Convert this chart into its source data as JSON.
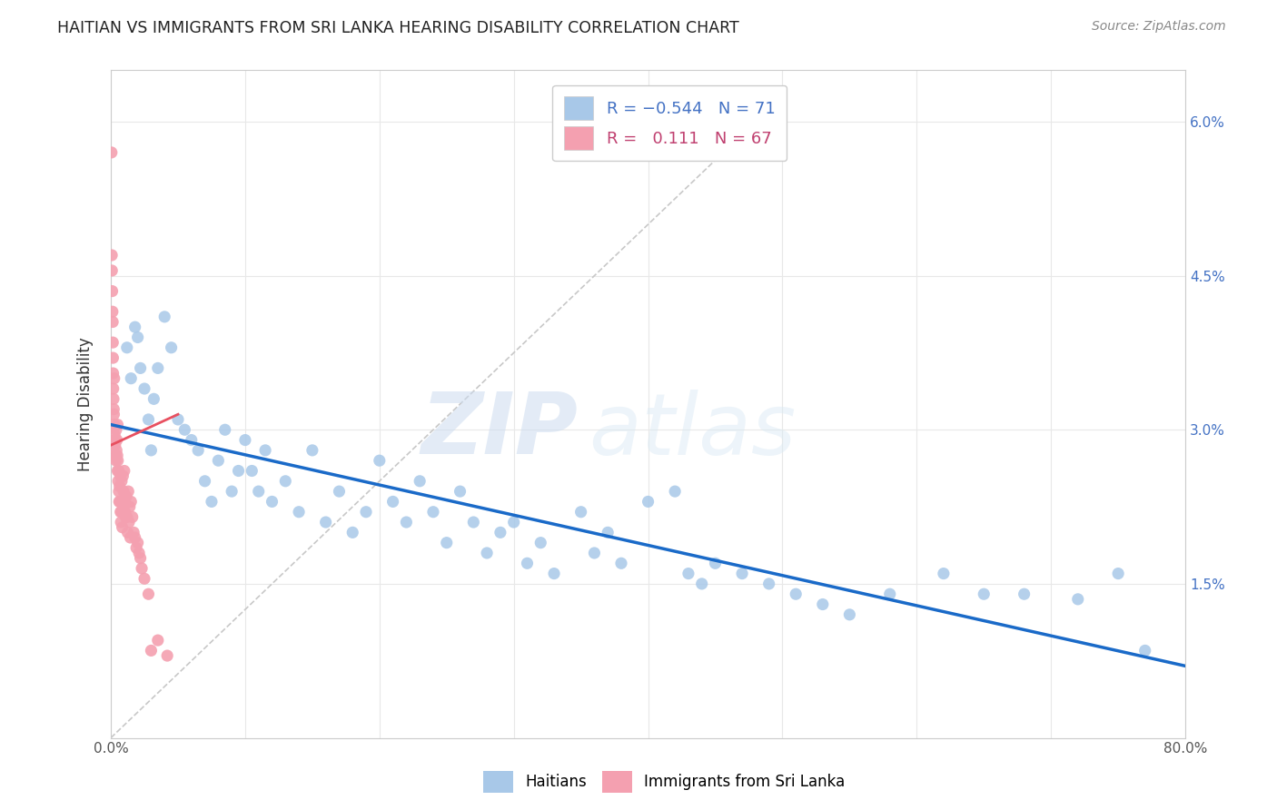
{
  "title": "HAITIAN VS IMMIGRANTS FROM SRI LANKA HEARING DISABILITY CORRELATION CHART",
  "source": "Source: ZipAtlas.com",
  "ylabel": "Hearing Disability",
  "blue_color": "#a8c8e8",
  "pink_color": "#f4a0b0",
  "blue_line_color": "#1a6ac8",
  "pink_line_color": "#e85060",
  "diag_line_color": "#c8c8c8",
  "bg_color": "#ffffff",
  "grid_color": "#e8e8e8",
  "blue_scatter_x": [
    1.2,
    1.5,
    1.8,
    2.0,
    2.2,
    2.5,
    2.8,
    3.0,
    3.2,
    3.5,
    4.0,
    4.5,
    5.0,
    5.5,
    6.0,
    6.5,
    7.0,
    7.5,
    8.0,
    8.5,
    9.0,
    9.5,
    10.0,
    10.5,
    11.0,
    11.5,
    12.0,
    13.0,
    14.0,
    15.0,
    16.0,
    17.0,
    18.0,
    19.0,
    20.0,
    21.0,
    22.0,
    23.0,
    24.0,
    25.0,
    26.0,
    27.0,
    28.0,
    29.0,
    30.0,
    31.0,
    32.0,
    33.0,
    35.0,
    36.0,
    37.0,
    38.0,
    40.0,
    42.0,
    43.0,
    44.0,
    45.0,
    47.0,
    49.0,
    51.0,
    53.0,
    55.0,
    58.0,
    62.0,
    65.0,
    68.0,
    72.0,
    75.0,
    77.0
  ],
  "blue_scatter_y": [
    3.8,
    3.5,
    4.0,
    3.9,
    3.6,
    3.4,
    3.1,
    2.8,
    3.3,
    3.6,
    4.1,
    3.8,
    3.1,
    3.0,
    2.9,
    2.8,
    2.5,
    2.3,
    2.7,
    3.0,
    2.4,
    2.6,
    2.9,
    2.6,
    2.4,
    2.8,
    2.3,
    2.5,
    2.2,
    2.8,
    2.1,
    2.4,
    2.0,
    2.2,
    2.7,
    2.3,
    2.1,
    2.5,
    2.2,
    1.9,
    2.4,
    2.1,
    1.8,
    2.0,
    2.1,
    1.7,
    1.9,
    1.6,
    2.2,
    1.8,
    2.0,
    1.7,
    2.3,
    2.4,
    1.6,
    1.5,
    1.7,
    1.6,
    1.5,
    1.4,
    1.3,
    1.2,
    1.4,
    1.6,
    1.4,
    1.4,
    1.35,
    1.6,
    0.85
  ],
  "blue_line_x0": 0.0,
  "blue_line_y0": 3.05,
  "blue_line_x1": 80.0,
  "blue_line_y1": 0.7,
  "pink_line_x0": 0.0,
  "pink_line_y0": 2.85,
  "pink_line_x1": 5.0,
  "pink_line_y1": 3.15,
  "pink_scatter_x": [
    0.05,
    0.07,
    0.08,
    0.1,
    0.12,
    0.14,
    0.15,
    0.16,
    0.17,
    0.18,
    0.2,
    0.22,
    0.23,
    0.25,
    0.25,
    0.28,
    0.3,
    0.32,
    0.35,
    0.38,
    0.4,
    0.42,
    0.45,
    0.48,
    0.5,
    0.5,
    0.52,
    0.55,
    0.58,
    0.6,
    0.62,
    0.65,
    0.68,
    0.7,
    0.72,
    0.75,
    0.78,
    0.8,
    0.85,
    0.9,
    0.95,
    0.95,
    1.0,
    1.0,
    1.05,
    1.1,
    1.15,
    1.2,
    1.25,
    1.3,
    1.35,
    1.4,
    1.45,
    1.5,
    1.6,
    1.7,
    1.8,
    1.9,
    2.0,
    2.1,
    2.2,
    2.3,
    2.5,
    2.8,
    3.0,
    3.5,
    4.2
  ],
  "pink_scatter_y": [
    5.7,
    4.7,
    4.55,
    4.35,
    4.15,
    4.05,
    3.85,
    3.7,
    3.55,
    3.4,
    3.3,
    3.2,
    3.15,
    3.05,
    3.5,
    2.95,
    2.9,
    2.85,
    2.75,
    2.7,
    3.0,
    2.8,
    2.9,
    2.75,
    2.6,
    3.05,
    2.7,
    2.5,
    2.6,
    2.4,
    2.3,
    2.45,
    2.3,
    2.55,
    2.2,
    2.1,
    2.2,
    2.5,
    2.05,
    2.55,
    2.4,
    2.25,
    2.3,
    2.6,
    2.2,
    2.15,
    2.35,
    2.15,
    2.0,
    2.4,
    2.1,
    2.25,
    1.95,
    2.3,
    2.15,
    2.0,
    1.95,
    1.85,
    1.9,
    1.8,
    1.75,
    1.65,
    1.55,
    1.4,
    0.85,
    0.95,
    0.8
  ],
  "diag_x0": 0.0,
  "diag_y0": 0.0,
  "diag_x1": 48.0,
  "diag_y1": 6.0,
  "xlim": [
    0.0,
    80.0
  ],
  "ylim": [
    0.0,
    6.5
  ],
  "xtick_vals": [
    0,
    10,
    20,
    30,
    40,
    50,
    60,
    70,
    80
  ],
  "ytick_vals": [
    0.0,
    1.5,
    3.0,
    4.5,
    6.0
  ],
  "ytick_labels": [
    "",
    "1.5%",
    "3.0%",
    "4.5%",
    "6.0%"
  ]
}
